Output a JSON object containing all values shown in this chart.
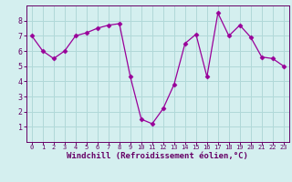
{
  "x": [
    0,
    1,
    2,
    3,
    4,
    5,
    6,
    7,
    8,
    9,
    10,
    11,
    12,
    13,
    14,
    15,
    16,
    17,
    18,
    19,
    20,
    21,
    22,
    23
  ],
  "y": [
    7.0,
    6.0,
    5.5,
    6.0,
    7.0,
    7.2,
    7.5,
    7.7,
    7.8,
    4.3,
    1.5,
    1.2,
    2.2,
    3.8,
    6.5,
    7.1,
    4.3,
    8.5,
    7.0,
    7.7,
    6.9,
    5.6,
    5.5,
    5.0
  ],
  "line_color": "#990099",
  "marker": "D",
  "marker_size": 2.5,
  "bg_color": "#d4efef",
  "grid_color": "#b0d8d8",
  "xlabel": "Windchill (Refroidissement éolien,°C)",
  "ylabel": "",
  "xlim": [
    -0.5,
    23.5
  ],
  "ylim": [
    0,
    9
  ],
  "yticks": [
    1,
    2,
    3,
    4,
    5,
    6,
    7,
    8
  ],
  "xticks": [
    0,
    1,
    2,
    3,
    4,
    5,
    6,
    7,
    8,
    9,
    10,
    11,
    12,
    13,
    14,
    15,
    16,
    17,
    18,
    19,
    20,
    21,
    22,
    23
  ],
  "xlabel_fontsize": 6.5,
  "xtick_fontsize": 5.0,
  "ytick_fontsize": 6.0,
  "axis_label_color": "#660066",
  "spine_color": "#660066"
}
